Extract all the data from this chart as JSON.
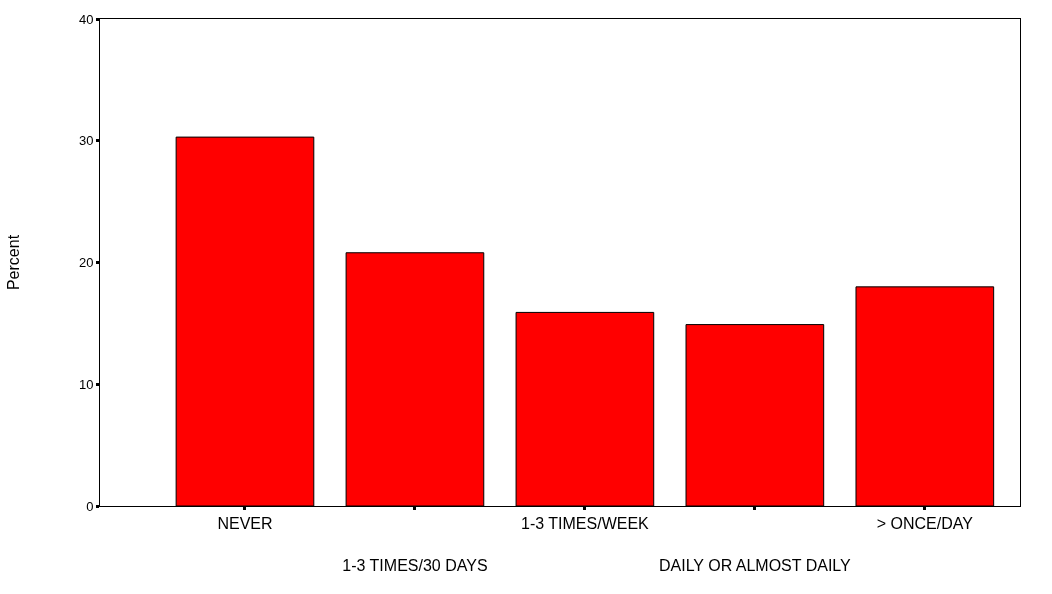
{
  "chart_data": {
    "type": "bar",
    "ylabel": "Percent",
    "categories": [
      "NEVER",
      "1-3 TIMES/30 DAYS",
      "1-3 TIMES/WEEK",
      "DAILY OR ALMOST DAILY",
      "> ONCE/DAY"
    ],
    "values": [
      30.3,
      20.8,
      15.9,
      14.9,
      18.0
    ],
    "color": "#ff0000",
    "ylim": [
      0,
      40
    ],
    "yticks": [
      0,
      10,
      20,
      30,
      40
    ],
    "grid": false
  }
}
